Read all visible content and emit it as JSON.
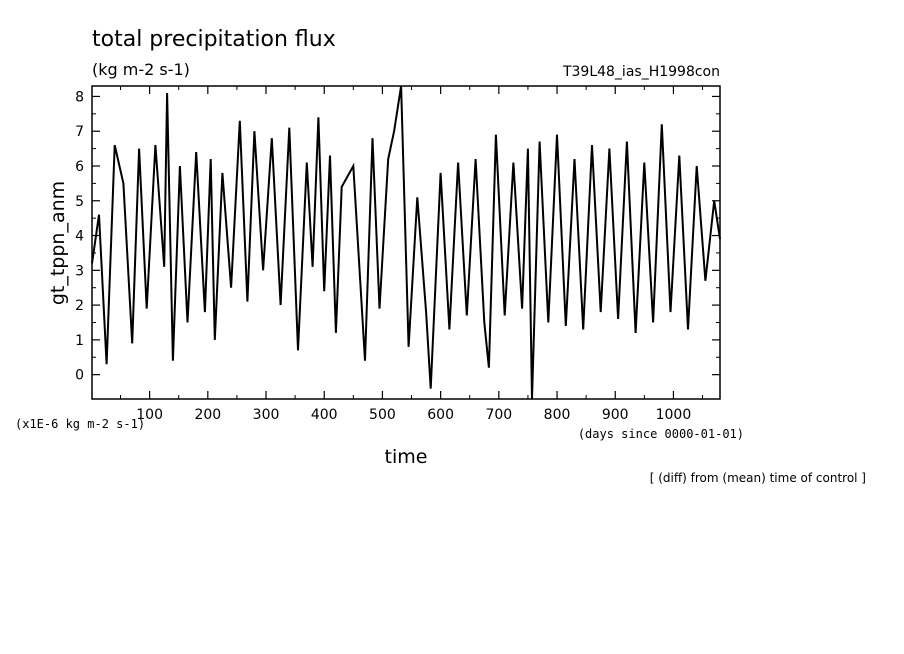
{
  "chart_data": {
    "type": "line",
    "title": "total precipitation flux",
    "subtitle": "(kg m-2 s-1)",
    "run_label": "T39L48_ias_H1998con",
    "ylabel": "gt_tppn_anm",
    "y_unit_note": "(x1E-6 kg m-2 s-1)",
    "xlabel": "time",
    "x_unit_note": "(days since 0000-01-01)",
    "footnote": "[ (diff) from (mean) time of control ]",
    "xlim": [
      1,
      1080
    ],
    "ylim": [
      -0.7,
      8.3
    ],
    "x_ticks": [
      100,
      200,
      300,
      400,
      500,
      600,
      700,
      800,
      900,
      1000
    ],
    "y_ticks": [
      0,
      1,
      2,
      3,
      4,
      5,
      6,
      7,
      8
    ],
    "grid": false,
    "series": [
      {
        "x": [
          1,
          13,
          26,
          40,
          55,
          70,
          82,
          95,
          110,
          125,
          130,
          140,
          152,
          165,
          180,
          195,
          205,
          212,
          225,
          240,
          255,
          268,
          280,
          295,
          310,
          325,
          340,
          355,
          370,
          380,
          390,
          400,
          410,
          420,
          430,
          450,
          470,
          483,
          495,
          510,
          520,
          532,
          545,
          560,
          575,
          583,
          600,
          615,
          630,
          645,
          660,
          675,
          683,
          695,
          710,
          725,
          740,
          750,
          757,
          770,
          785,
          800,
          815,
          830,
          845,
          860,
          875,
          890,
          905,
          920,
          935,
          950,
          965,
          980,
          995,
          1010,
          1025,
          1040,
          1055,
          1070,
          1080
        ],
        "y": [
          3.2,
          4.6,
          0.3,
          6.6,
          5.5,
          0.9,
          6.5,
          1.9,
          6.6,
          3.1,
          8.1,
          0.4,
          6.0,
          1.5,
          6.4,
          1.8,
          6.2,
          1.0,
          5.8,
          2.5,
          7.3,
          2.1,
          7.0,
          3.0,
          6.8,
          2.0,
          7.1,
          0.7,
          6.1,
          3.1,
          7.4,
          2.4,
          6.3,
          1.2,
          5.4,
          6.0,
          0.4,
          6.8,
          1.9,
          6.2,
          7.0,
          8.3,
          0.8,
          5.1,
          1.8,
          -0.4,
          5.8,
          1.3,
          6.1,
          1.7,
          6.2,
          1.5,
          0.2,
          6.9,
          1.7,
          6.1,
          1.9,
          6.5,
          -0.7,
          6.7,
          1.5,
          6.9,
          1.4,
          6.2,
          1.3,
          6.6,
          1.8,
          6.5,
          1.6,
          6.7,
          1.2,
          6.1,
          1.5,
          7.2,
          1.8,
          6.3,
          1.3,
          6.0,
          2.7,
          5.0,
          3.9
        ]
      }
    ]
  }
}
